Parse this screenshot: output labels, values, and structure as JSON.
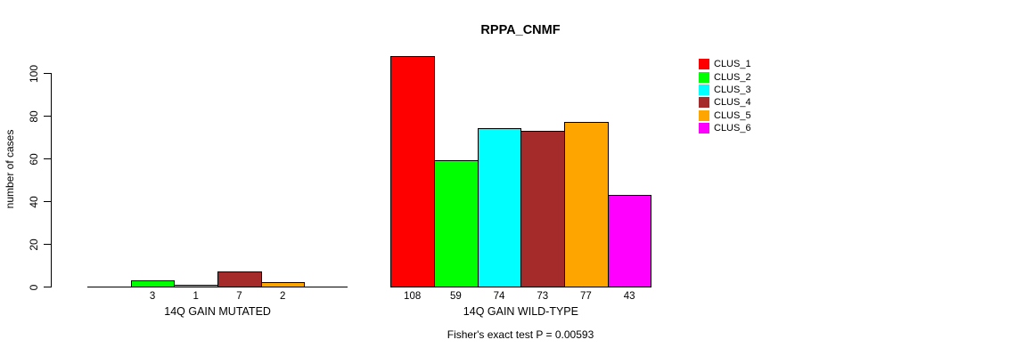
{
  "figure": {
    "background": "#ffffff",
    "axis_color": "#000000"
  },
  "chart_data": {
    "type": "bar",
    "title": "RPPA_CNMF",
    "ylabel": "number of cases",
    "xlabel": "",
    "categories": [
      "14Q GAIN MUTATED",
      "14Q GAIN WILD-TYPE"
    ],
    "series": [
      {
        "name": "CLUS_1",
        "color": "#FF0000",
        "values": [
          0,
          108
        ]
      },
      {
        "name": "CLUS_2",
        "color": "#00FF00",
        "values": [
          3,
          59
        ]
      },
      {
        "name": "CLUS_3",
        "color": "#00FFFF",
        "values": [
          1,
          74
        ]
      },
      {
        "name": "CLUS_4",
        "color": "#A52A2A",
        "values": [
          7,
          73
        ]
      },
      {
        "name": "CLUS_5",
        "color": "#FFA500",
        "values": [
          2,
          77
        ]
      },
      {
        "name": "CLUS_6",
        "color": "#FF00FF",
        "values": [
          0,
          43
        ]
      }
    ],
    "bar_value_labels": {
      "14Q GAIN MUTATED": [
        "3",
        "1",
        "7",
        "2"
      ],
      "14Q GAIN WILD-TYPE": [
        "108",
        "59",
        "74",
        "73",
        "77",
        "43"
      ],
      "note": "zero-value bars are drawn flat and unlabeled"
    },
    "ylim": [
      0,
      100
    ],
    "yticks": [
      0,
      20,
      40,
      60,
      80,
      100
    ],
    "grid": false,
    "legend_position": "right",
    "legend_entries": [
      "CLUS_1",
      "CLUS_2",
      "CLUS_3",
      "CLUS_4",
      "CLUS_5",
      "CLUS_6"
    ],
    "annotation": "Fisher's exact test P = 0.00593"
  }
}
